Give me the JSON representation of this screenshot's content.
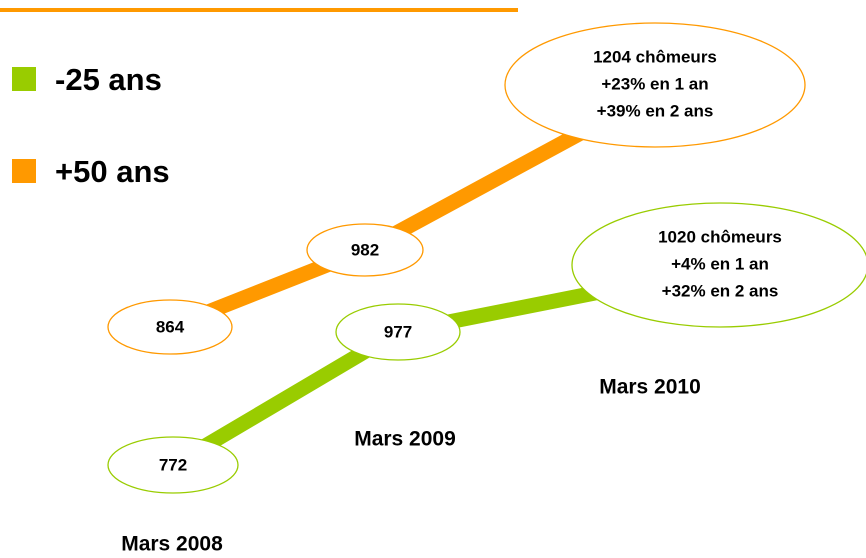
{
  "dates": [
    "Mars 2008",
    "Mars 2009",
    "Mars 2010"
  ],
  "series": [
    {
      "name": "-25 ans",
      "color": "#99cc00",
      "points": [
        772,
        977
      ],
      "callout": [
        "1020 chômeurs",
        "+4% en 1 an",
        "+32% en 2 ans"
      ]
    },
    {
      "name": "+50 ans",
      "color": "#ff9900",
      "points": [
        864,
        982
      ],
      "callout": [
        "1204 chômeurs",
        "+23% en 1 an",
        "+39% en 2 ans"
      ]
    }
  ]
}
